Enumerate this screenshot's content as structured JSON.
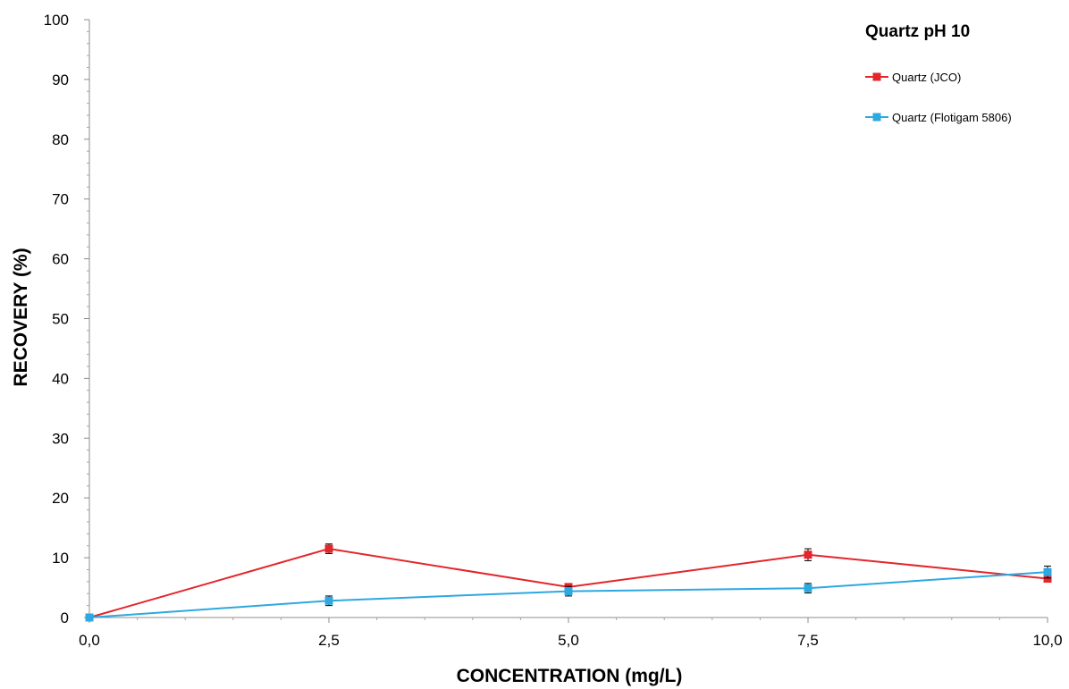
{
  "chart_data": {
    "type": "line",
    "title": "Quartz pH 10",
    "xlabel": "CONCENTRATION (mg/L)",
    "ylabel": "RECOVERY (%)",
    "xlim": [
      0,
      10
    ],
    "ylim": [
      0,
      100
    ],
    "x": [
      0,
      2.5,
      5,
      7.5,
      10
    ],
    "x_tick_labels": [
      "0,0",
      "2,5",
      "5,0",
      "7,5",
      "10,0"
    ],
    "y_tick_labels": [
      "0",
      "10",
      "20",
      "30",
      "40",
      "50",
      "60",
      "70",
      "80",
      "90",
      "100"
    ],
    "grid": false,
    "legend_position": "top-right",
    "series": [
      {
        "name": "Quartz (JCO)",
        "color": "#e3262b",
        "values": [
          0,
          11.5,
          5.1,
          10.5,
          6.5
        ],
        "errors": [
          0,
          0.8,
          0.5,
          1.0,
          0.5
        ]
      },
      {
        "name": "Quartz (Flotigam 5806)",
        "color": "#2ea8e0",
        "values": [
          0,
          2.8,
          4.4,
          4.9,
          7.6
        ],
        "errors": [
          0,
          0.8,
          0.8,
          0.8,
          1.0
        ]
      }
    ]
  }
}
